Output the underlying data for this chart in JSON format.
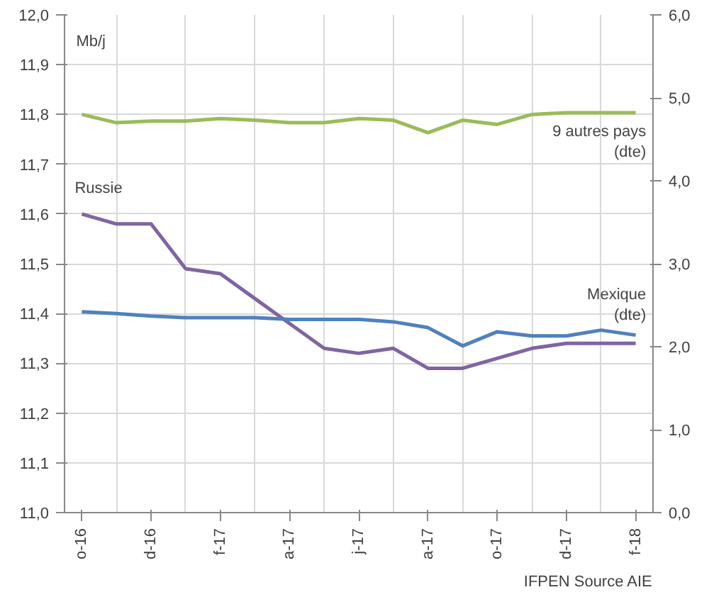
{
  "chart_data": {
    "type": "line",
    "ylabel": "Mb/j",
    "annotations": [
      "IFPEN Source AIE"
    ],
    "categories": [
      "o-16",
      null,
      "d-16",
      null,
      "f-17",
      null,
      "a-17",
      null,
      "j-17",
      null,
      "a-17",
      null,
      "o-17",
      null,
      "d-17",
      null,
      "f-18"
    ],
    "series": [
      {
        "name": "9 autres pays\n(dte)",
        "color": "#9bbb59",
        "axis": "y2",
        "values": [
          4.8,
          4.7,
          4.72,
          4.72,
          4.75,
          4.73,
          4.7,
          4.7,
          4.75,
          4.73,
          4.58,
          4.73,
          4.68,
          4.8,
          4.82,
          4.82,
          4.82
        ]
      },
      {
        "name": "Russie",
        "color": "#8064a2",
        "values": [
          11.6,
          11.58,
          11.58,
          11.49,
          11.48,
          11.43,
          11.38,
          11.33,
          11.32,
          11.33,
          11.29,
          11.29,
          11.31,
          11.33,
          11.34,
          11.34,
          11.34
        ]
      },
      {
        "name": "Mexique\n(dte)",
        "color": "#4f81bd",
        "axis": "y2",
        "values": [
          2.42,
          2.4,
          2.37,
          2.35,
          2.35,
          2.35,
          2.33,
          2.33,
          2.33,
          2.3,
          2.23,
          2.01,
          2.18,
          2.13,
          2.13,
          2.2,
          2.14
        ]
      }
    ],
    "ylim": [
      11.0,
      12.0
    ],
    "yticks": [
      {
        "value": 11.0,
        "label": "11,0"
      },
      {
        "value": 11.1,
        "label": "11,1"
      },
      {
        "value": 11.2,
        "label": "11,2"
      },
      {
        "value": 11.3,
        "label": "11,3"
      },
      {
        "value": 11.4,
        "label": "11,4"
      },
      {
        "value": 11.5,
        "label": "11,5"
      },
      {
        "value": 11.6,
        "label": "11,6"
      },
      {
        "value": 11.7,
        "label": "11,7"
      },
      {
        "value": 11.8,
        "label": "11,8"
      },
      {
        "value": 11.9,
        "label": "11,9"
      },
      {
        "value": 12.0,
        "label": "12,0"
      }
    ],
    "y2lim": [
      0,
      6
    ],
    "y2ticks": [
      {
        "value": 0,
        "label": "0,0"
      },
      {
        "value": 1,
        "label": "1,0"
      },
      {
        "value": 2,
        "label": "2,0"
      },
      {
        "value": 3,
        "label": "3,0"
      },
      {
        "value": 4,
        "label": "4,0"
      },
      {
        "value": 5,
        "label": "5,0"
      },
      {
        "value": 6,
        "label": "6,0"
      }
    ],
    "grid": true
  }
}
